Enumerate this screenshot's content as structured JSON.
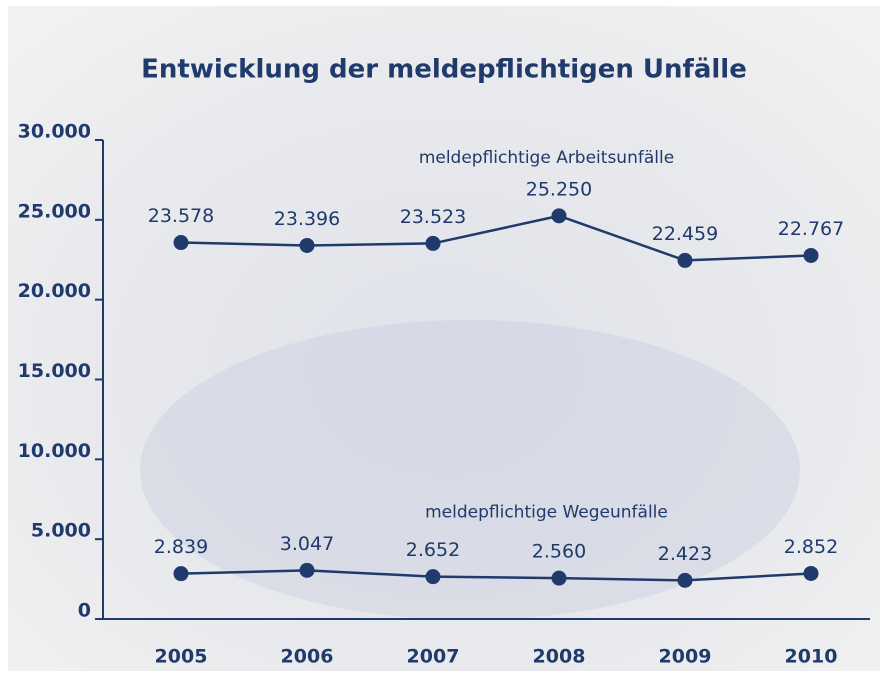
{
  "chart_data": {
    "type": "line",
    "title": "Entwicklung der meldepflichtigen Unfälle",
    "categories": [
      "2005",
      "2006",
      "2007",
      "2008",
      "2009",
      "2010"
    ],
    "series": [
      {
        "name": "meldepflichtige Arbeitsunfälle",
        "color": "#1f3a6b",
        "values": [
          23578,
          23396,
          23523,
          25250,
          22459,
          22767
        ],
        "value_labels": [
          "23.578",
          "23.396",
          "23.523",
          "25.250",
          "22.459",
          "22.767"
        ]
      },
      {
        "name": "meldepflichtige Wegeunfälle",
        "color": "#1f3a6b",
        "values": [
          2839,
          3047,
          2652,
          2560,
          2423,
          2852
        ],
        "value_labels": [
          "2.839",
          "3.047",
          "2.652",
          "2.560",
          "2.423",
          "2.852"
        ]
      }
    ],
    "ylim": [
      0,
      30000
    ],
    "yticks": [
      0,
      {
        "value": 5000,
        "label": "5.000"
      },
      {
        "value": 10000,
        "label": "10.000"
      },
      {
        "value": 15000,
        "label": "15.000"
      },
      {
        "value": 20000,
        "label": "20.000"
      },
      {
        "value": 25000,
        "label": "25.000"
      },
      {
        "value": 30000,
        "label": "30.000"
      }
    ]
  }
}
